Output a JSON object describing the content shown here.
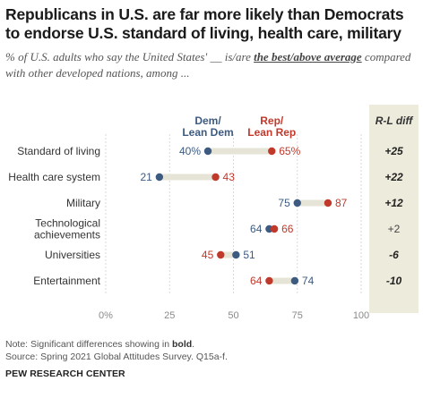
{
  "header": {
    "title": "Republicans in U.S. are far more likely than Democrats to endorse U.S. standard of living, health care, military",
    "subtitle_pre": "% of U.S. adults who say the United States' __ is/are ",
    "subtitle_em": "the best/above average",
    "subtitle_post": " compared with other developed nations, among ..."
  },
  "footer": {
    "note_pre": "Note: Significant differences showing in ",
    "note_bold": "bold",
    "note_post": ".",
    "source": "Source: Spring 2021 Global Attitudes Survey. Q15a-f.",
    "org": "PEW RESEARCH CENTER"
  },
  "colors": {
    "dem": "#3d5a80",
    "rep": "#c0392b",
    "connector": "#e6e4d6",
    "diff_panel": "#edebdc",
    "grid": "#d9d9d9",
    "axis_text": "#8a8a8a"
  },
  "chart_data": {
    "type": "dot-plot",
    "legend": {
      "dem": [
        "Dem/",
        "Lean Dem"
      ],
      "rep": [
        "Rep/",
        "Lean Rep"
      ]
    },
    "diff_header": "R-L diff",
    "xlim": [
      0,
      100
    ],
    "x_ticks": [
      0,
      25,
      50,
      75,
      100
    ],
    "x_tick_labels": [
      "0%",
      "25",
      "50",
      "75",
      "100"
    ],
    "grid": true,
    "rows": [
      {
        "category": [
          "Standard of living"
        ],
        "dem": 40,
        "rep": 65,
        "dem_label": "40%",
        "rep_label": "65%",
        "diff": "+25",
        "significant": true
      },
      {
        "category": [
          "Health care system"
        ],
        "dem": 21,
        "rep": 43,
        "dem_label": "21",
        "rep_label": "43",
        "diff": "+22",
        "significant": true
      },
      {
        "category": [
          "Military"
        ],
        "dem": 75,
        "rep": 87,
        "dem_label": "75",
        "rep_label": "87",
        "diff": "+12",
        "significant": true
      },
      {
        "category": [
          "Technological",
          "achievements"
        ],
        "dem": 64,
        "rep": 66,
        "dem_label": "64",
        "rep_label": "66",
        "diff": "+2",
        "significant": false
      },
      {
        "category": [
          "Universities"
        ],
        "dem": 51,
        "rep": 45,
        "dem_label": "51",
        "rep_label": "45",
        "diff": "-6",
        "significant": true
      },
      {
        "category": [
          "Entertainment"
        ],
        "dem": 74,
        "rep": 64,
        "dem_label": "74",
        "rep_label": "64",
        "diff": "-10",
        "significant": true
      }
    ]
  }
}
